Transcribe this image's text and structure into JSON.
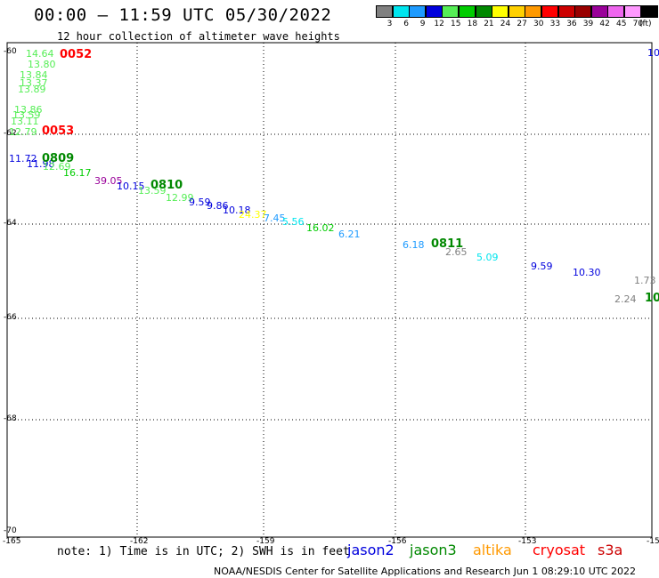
{
  "header": {
    "title": "00:00 – 11:59 UTC 05/30/2022",
    "subtitle": "12 hour collection of altimeter wave heights"
  },
  "legend": {
    "unit": "(ft)",
    "bins": [
      {
        "label": "3",
        "color": "#808080"
      },
      {
        "label": "6",
        "color": "#00e5ee"
      },
      {
        "label": "9",
        "color": "#1e9bff"
      },
      {
        "label": "12",
        "color": "#0000dd"
      },
      {
        "label": "15",
        "color": "#55ee55"
      },
      {
        "label": "18",
        "color": "#00cc00"
      },
      {
        "label": "21",
        "color": "#008800"
      },
      {
        "label": "24",
        "color": "#ffff00"
      },
      {
        "label": "27",
        "color": "#ffd000"
      },
      {
        "label": "30",
        "color": "#ff9900"
      },
      {
        "label": "33",
        "color": "#ff0000"
      },
      {
        "label": "36",
        "color": "#cc0000"
      },
      {
        "label": "39",
        "color": "#990000"
      },
      {
        "label": "42",
        "color": "#990099"
      },
      {
        "label": "45",
        "color": "#ee66ee"
      },
      {
        "label": "70",
        "color": "#ff99ff"
      },
      {
        "label": "",
        "color": "#000000"
      }
    ]
  },
  "axes": {
    "lon_labels": [
      "-165",
      "-162",
      "-159",
      "-156",
      "-153",
      "-15"
    ],
    "lat_labels": [
      "-60",
      "-62",
      "-64",
      "-66",
      "-68",
      "-70"
    ]
  },
  "measurements": [
    {
      "text": "14.64",
      "color": "#55ee55"
    },
    {
      "text": "13.80",
      "color": "#55ee55"
    },
    {
      "text": "13.84",
      "color": "#55ee55"
    },
    {
      "text": "13.37",
      "color": "#55ee55"
    },
    {
      "text": "13.89",
      "color": "#55ee55"
    },
    {
      "text": "13.86",
      "color": "#55ee55"
    },
    {
      "text": "13.59",
      "color": "#55ee55"
    },
    {
      "text": "13.11",
      "color": "#55ee55"
    },
    {
      "text": "12.79",
      "color": "#55ee55"
    },
    {
      "text": "11.72",
      "color": "#0000dd"
    },
    {
      "text": "11.98",
      "color": "#0000dd"
    },
    {
      "text": "12.69",
      "color": "#55ee55"
    },
    {
      "text": "16.17",
      "color": "#00cc00"
    },
    {
      "text": "39.05",
      "color": "#990099"
    },
    {
      "text": "10.15",
      "color": "#0000dd"
    },
    {
      "text": "13.59",
      "color": "#55ee55"
    },
    {
      "text": "12.99",
      "color": "#55ee55"
    },
    {
      "text": "9.59",
      "color": "#0000dd"
    },
    {
      "text": "9.86",
      "color": "#0000dd"
    },
    {
      "text": "10.18",
      "color": "#0000dd"
    },
    {
      "text": "24.37",
      "color": "#ffff00"
    },
    {
      "text": "7.45",
      "color": "#1e9bff"
    },
    {
      "text": "5.56",
      "color": "#00e5ee"
    },
    {
      "text": "16.02",
      "color": "#00cc00"
    },
    {
      "text": "6.21",
      "color": "#1e9bff"
    },
    {
      "text": "6.18",
      "color": "#1e9bff"
    },
    {
      "text": "2.65",
      "color": "#808080"
    },
    {
      "text": "5.09",
      "color": "#00e5ee"
    },
    {
      "text": "9.59",
      "color": "#0000dd"
    },
    {
      "text": "10.30",
      "color": "#0000dd"
    },
    {
      "text": "1.73",
      "color": "#808080"
    },
    {
      "text": "2.24",
      "color": "#808080"
    },
    {
      "text": "10",
      "color": "#0000dd"
    }
  ],
  "pass_times": [
    {
      "text": "0052",
      "color": "#ff0000"
    },
    {
      "text": "0053",
      "color": "#ff0000"
    },
    {
      "text": "0809",
      "color": "#008800"
    },
    {
      "text": "0810",
      "color": "#008800"
    },
    {
      "text": "0811",
      "color": "#008800"
    },
    {
      "text": "10",
      "color": "#008800"
    }
  ],
  "footer": {
    "note": "note: 1) Time is in UTC; 2) SWH is in feet",
    "satellites": [
      {
        "name": "jason2",
        "color": "#0000dd"
      },
      {
        "name": "jason3",
        "color": "#008800"
      },
      {
        "name": "altika",
        "color": "#ff9900"
      },
      {
        "name": "cryosat",
        "color": "#ff0000"
      },
      {
        "name": "s3a",
        "color": "#cc0000"
      }
    ],
    "credit": "NOAA/NESDIS Center for Satellite Applications and Research   Jun  1 08:29:10 UTC 2022"
  }
}
